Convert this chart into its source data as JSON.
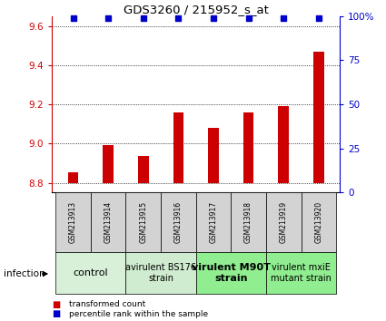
{
  "title": "GDS3260 / 215952_s_at",
  "samples": [
    "GSM213913",
    "GSM213914",
    "GSM213915",
    "GSM213916",
    "GSM213917",
    "GSM213918",
    "GSM213919",
    "GSM213920"
  ],
  "bar_values": [
    8.855,
    8.99,
    8.935,
    9.16,
    9.08,
    9.16,
    9.19,
    9.47
  ],
  "percentile_values": [
    99,
    99,
    99,
    99,
    99,
    99,
    99,
    99
  ],
  "bar_color": "#cc0000",
  "dot_color": "#0000cc",
  "ylim_left": [
    8.75,
    9.65
  ],
  "ylim_right": [
    0,
    100
  ],
  "yticks_left": [
    8.8,
    9.0,
    9.2,
    9.4,
    9.6
  ],
  "yticks_right": [
    0,
    25,
    50,
    75,
    100
  ],
  "grid_values": [
    8.8,
    9.0,
    9.2,
    9.4,
    9.6
  ],
  "groups": [
    {
      "label": "control",
      "indices": [
        0,
        1
      ],
      "color": "#d8f0d8",
      "fontsize": 8,
      "bold": false
    },
    {
      "label": "avirulent BS176\nstrain",
      "indices": [
        2,
        3
      ],
      "color": "#d0ecd0",
      "fontsize": 7,
      "bold": false
    },
    {
      "label": "virulent M90T\nstrain",
      "indices": [
        4,
        5
      ],
      "color": "#90ee90",
      "fontsize": 8,
      "bold": true
    },
    {
      "label": "virulent mxiE\nmutant strain",
      "indices": [
        6,
        7
      ],
      "color": "#90ee90",
      "fontsize": 7,
      "bold": false
    }
  ],
  "legend_items": [
    {
      "color": "#cc0000",
      "label": "transformed count"
    },
    {
      "color": "#0000cc",
      "label": "percentile rank within the sample"
    }
  ],
  "infection_label": "infection",
  "bar_width": 0.3,
  "sample_box_color": "#d3d3d3",
  "bar_bottom": 8.8
}
